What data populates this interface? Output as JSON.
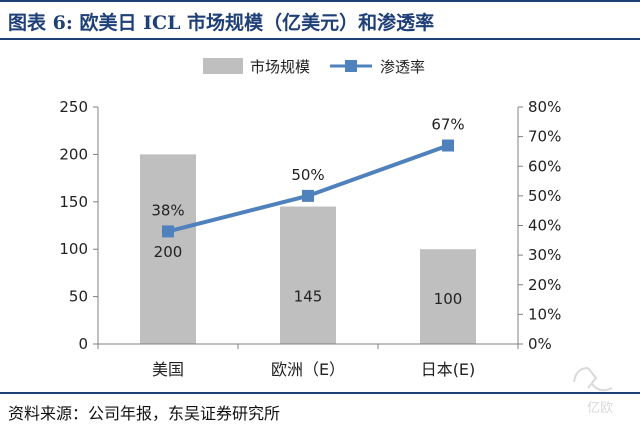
{
  "header": {
    "title": "图表 6: 欧美日 ICL 市场规模（亿美元）和渗透率"
  },
  "footer": {
    "source": "资料来源：公司年报，东吴证券研究所"
  },
  "colors": {
    "bar": "#bfbfbf",
    "line": "#4f81bd",
    "title": "#1f3f77",
    "axis": "#808080"
  },
  "watermark": {
    "icon": "yiou-logo-icon",
    "text": "亿欧"
  },
  "chart_data": {
    "type": "bar+line",
    "title": "",
    "categories": [
      "美国",
      "欧洲（E）",
      "日本(E)"
    ],
    "series": [
      {
        "name": "市场规模",
        "type": "bar",
        "axis": "left",
        "values": [
          200,
          145,
          100
        ],
        "labels": [
          "200",
          "145",
          "100"
        ]
      },
      {
        "name": "渗透率",
        "type": "line",
        "axis": "right",
        "values": [
          0.38,
          0.5,
          0.67
        ],
        "labels": [
          "38%",
          "50%",
          "67%"
        ]
      }
    ],
    "y_left": {
      "range": [
        0,
        250
      ],
      "ticks": [
        "0",
        "50",
        "100",
        "150",
        "200",
        "250"
      ]
    },
    "y_right": {
      "range": [
        0,
        0.8
      ],
      "ticks": [
        "0%",
        "10%",
        "20%",
        "30%",
        "40%",
        "50%",
        "60%",
        "70%",
        "80%"
      ]
    },
    "legend": {
      "position": "top-center"
    },
    "grid": false
  }
}
